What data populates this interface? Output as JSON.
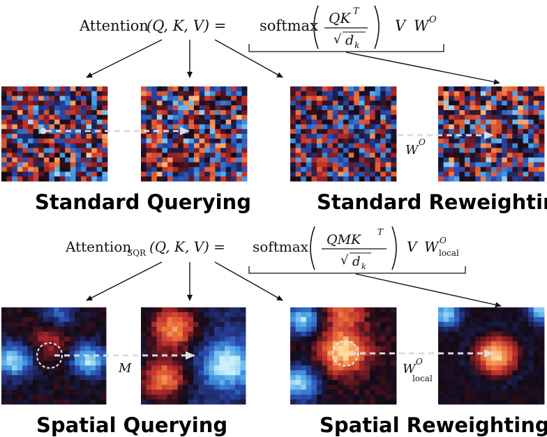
{
  "equations": {
    "standard": {
      "lhs_name": "Attention",
      "lhs_args": "(Q, K, V) =",
      "softmax": "softmax",
      "num_q": "QK",
      "num_sup": "T",
      "den_sqrt": "√",
      "den_d": "d",
      "den_sub": "k",
      "tail_v": "V",
      "tail_w": "W",
      "tail_sup": "O"
    },
    "sqr": {
      "lhs_name": "Attention",
      "lhs_sub": "SQR",
      "lhs_args": "(Q, K, V) =",
      "softmax": "softmax",
      "num_q": "QMK",
      "num_sup": "T",
      "den_sqrt": "√",
      "den_d": "d",
      "den_sub": "k",
      "tail_v": "V",
      "tail_w": "W",
      "tail_sup": "O",
      "tail_sub": "local"
    }
  },
  "labels": {
    "w_o": "W",
    "w_o_sup": "O",
    "m": "M",
    "w_local": "W",
    "w_local_sup": "O",
    "w_local_sub": "local"
  },
  "captions": {
    "standard_querying": "Standard Querying",
    "standard_reweighting": "Standard Reweighting",
    "spatial_querying": "Spatial Querying",
    "spatial_reweighting": "Spatial Reweighting"
  },
  "colors": {
    "arrow": "#111111",
    "dashed_arrow": "#d9d9d9",
    "highlight_ring": "#ffffff"
  }
}
